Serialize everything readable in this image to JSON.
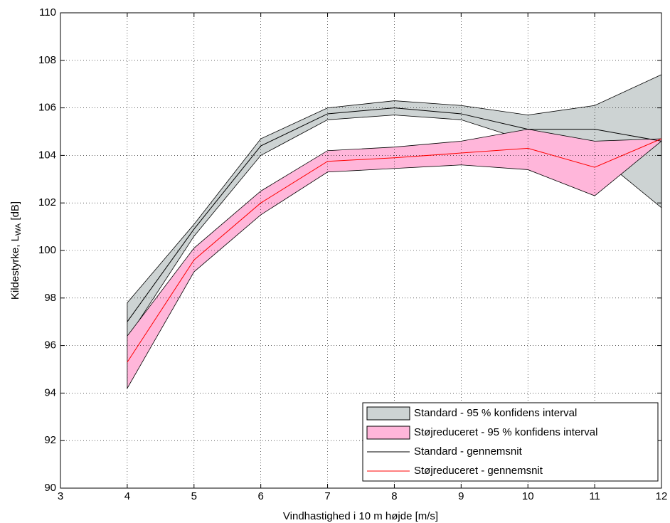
{
  "chart_data": {
    "type": "line",
    "xlabel": "Vindhastighed i 10 m højde [m/s]",
    "ylabel_parts": [
      "Kildestyrke, L",
      "WA",
      " [dB]"
    ],
    "x": [
      4,
      5,
      6,
      7,
      8,
      9,
      10,
      11,
      12
    ],
    "xlim": [
      3,
      12
    ],
    "xticks": [
      3,
      4,
      5,
      6,
      7,
      8,
      9,
      10,
      11,
      12
    ],
    "ylim": [
      90,
      110
    ],
    "yticks": [
      90,
      92,
      94,
      96,
      98,
      100,
      102,
      104,
      106,
      108,
      110
    ],
    "grid": true,
    "legend": "lower right",
    "bands": [
      {
        "name": "Standard - 95 % konfidens interval",
        "color": "#cdd3d3",
        "upper": [
          97.8,
          101.1,
          104.7,
          106.0,
          106.3,
          106.1,
          105.7,
          106.1,
          107.4
        ],
        "lower": [
          96.3,
          100.6,
          104.0,
          105.5,
          105.7,
          105.5,
          104.6,
          104.1,
          101.8
        ]
      },
      {
        "name": "Støjreduceret - 95 % konfidens interval",
        "color": "#ffb6da",
        "upper": [
          96.4,
          100.1,
          102.5,
          104.2,
          104.35,
          104.6,
          105.1,
          104.6,
          104.7
        ],
        "lower": [
          94.2,
          99.1,
          101.5,
          103.3,
          103.45,
          103.6,
          103.4,
          102.3,
          104.6
        ]
      }
    ],
    "series": [
      {
        "name": "Standard - gennemsnit",
        "color": "#000000",
        "values": [
          97.0,
          100.9,
          104.4,
          105.75,
          106.0,
          105.75,
          105.1,
          105.1,
          104.6
        ]
      },
      {
        "name": "Støjreduceret - gennemsnit",
        "color": "#ff0000",
        "values": [
          95.3,
          99.6,
          102.0,
          103.75,
          103.9,
          104.1,
          104.3,
          103.5,
          104.7
        ]
      }
    ]
  }
}
